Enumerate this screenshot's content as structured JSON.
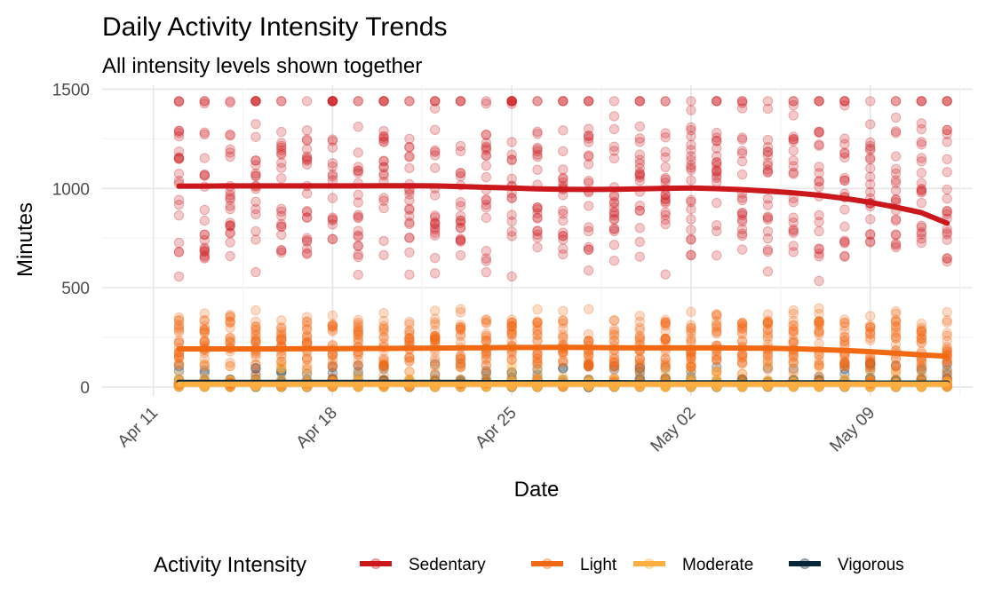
{
  "chart_data": {
    "type": "scatter",
    "title": "Daily Activity Intensity Trends",
    "subtitle": "All intensity levels shown together",
    "xlabel": "Date",
    "ylabel": "Minutes",
    "x_ticks": [
      "Apr 11",
      "Apr 18",
      "Apr 25",
      "May 02",
      "May 09"
    ],
    "x_range": [
      "2016-04-09",
      "2016-05-13"
    ],
    "y_ticks": [
      0,
      500,
      1000,
      1500
    ],
    "ylim": [
      -45,
      1520
    ],
    "grid": true,
    "legend_position": "bottom",
    "legend_title": "Activity Intensity",
    "dates": [
      "2016-04-12",
      "2016-04-13",
      "2016-04-14",
      "2016-04-15",
      "2016-04-16",
      "2016-04-17",
      "2016-04-18",
      "2016-04-19",
      "2016-04-20",
      "2016-04-21",
      "2016-04-22",
      "2016-04-23",
      "2016-04-24",
      "2016-04-25",
      "2016-04-26",
      "2016-04-27",
      "2016-04-28",
      "2016-04-29",
      "2016-04-30",
      "2016-05-01",
      "2016-05-02",
      "2016-05-03",
      "2016-05-04",
      "2016-05-05",
      "2016-05-06",
      "2016-05-07",
      "2016-05-08",
      "2016-05-09",
      "2016-05-10",
      "2016-05-11",
      "2016-05-12"
    ],
    "series": [
      {
        "name": "Sedentary",
        "color": "#cb181d",
        "scatter": {
          "min": 530,
          "max": 1440,
          "dense_low": 650,
          "dense_high": 1300
        },
        "trend": [
          1012,
          1012,
          1013,
          1013,
          1013,
          1013,
          1013,
          1013,
          1014,
          1014,
          1013,
          1010,
          1006,
          1002,
          998,
          996,
          995,
          996,
          998,
          1001,
          1002,
          999,
          994,
          987,
          978,
          966,
          950,
          930,
          906,
          878,
          825
        ]
      },
      {
        "name": "Light",
        "color": "#f16913",
        "scatter": {
          "min": 0,
          "max": 400,
          "dense_low": 100,
          "dense_high": 340
        },
        "trend": [
          192,
          192,
          192,
          192,
          192,
          193,
          193,
          194,
          194,
          195,
          196,
          197,
          198,
          199,
          199,
          200,
          199,
          198,
          197,
          197,
          197,
          197,
          196,
          195,
          193,
          189,
          184,
          178,
          170,
          162,
          155
        ]
      },
      {
        "name": "Moderate",
        "color": "#fdae41",
        "scatter": {
          "min": 0,
          "max": 120,
          "dense_low": 0,
          "dense_high": 40
        },
        "trend": [
          14,
          14,
          14,
          14,
          14,
          14,
          14,
          14,
          14,
          14,
          14,
          14,
          14,
          14,
          14,
          14,
          14,
          14,
          14,
          14,
          14,
          14,
          14,
          14,
          14,
          14,
          14,
          14,
          14,
          14,
          14
        ]
      },
      {
        "name": "Vigorous",
        "color": "#08253a",
        "scatter": {
          "min": 0,
          "max": 120,
          "dense_low": 0,
          "dense_high": 40
        },
        "trend": [
          23,
          23,
          23,
          23,
          23,
          23,
          23,
          23,
          23,
          23,
          23,
          23,
          22,
          22,
          22,
          22,
          22,
          22,
          21,
          21,
          21,
          21,
          21,
          21,
          21,
          21,
          21,
          20,
          20,
          20,
          20
        ]
      }
    ]
  }
}
